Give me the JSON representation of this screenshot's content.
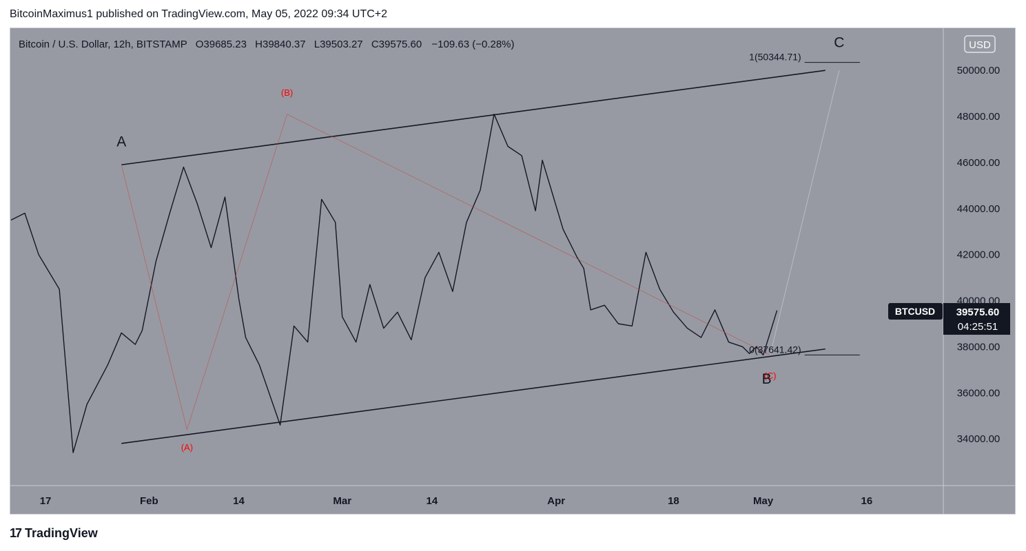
{
  "header": {
    "publisher_line": "BitcoinMaximus1 published on TradingView.com, May 05, 2022 09:34 UTC+2"
  },
  "legend": {
    "symbol": "Bitcoin / U.S. Dollar, 12h, BITSTAMP",
    "o_label": "O",
    "o_value": "39685.23",
    "h_label": "H",
    "h_value": "39840.37",
    "l_label": "L",
    "l_value": "39503.27",
    "c_label": "C",
    "c_value": "39575.60",
    "change": "−109.63 (−0.28%)"
  },
  "currency_button": "USD",
  "price_tag": {
    "symbol": "BTCUSD",
    "price": "39575.60",
    "countdown": "04:25:51"
  },
  "footer": {
    "logo_text": "TradingView"
  },
  "colors": {
    "background": "#979aa3",
    "candle": "#131722",
    "wave_red": "#c0504d",
    "annotation_red": "#ff0000",
    "text": "#131722"
  },
  "chart_data": {
    "type": "candlestick",
    "title": "Bitcoin / U.S. Dollar, 12h, BITSTAMP",
    "y_ticks": [
      "34000.00",
      "36000.00",
      "38000.00",
      "40000.00",
      "42000.00",
      "44000.00",
      "46000.00",
      "48000.00",
      "50000.00"
    ],
    "ylim": [
      32000,
      51800
    ],
    "x_ticks": [
      {
        "label": "17",
        "day": 0
      },
      {
        "label": "Feb",
        "day": 15
      },
      {
        "label": "14",
        "day": 28
      },
      {
        "label": "Mar",
        "day": 43
      },
      {
        "label": "14",
        "day": 56
      },
      {
        "label": "Apr",
        "day": 74
      },
      {
        "label": "18",
        "day": 91
      },
      {
        "label": "May",
        "day": 104
      },
      {
        "label": "16",
        "day": 119
      }
    ],
    "xlim_days": [
      -5,
      130
    ],
    "price_path_days": [
      -5,
      -3,
      -1,
      2,
      4,
      6,
      9,
      11,
      13,
      14,
      16,
      18,
      20,
      22,
      24,
      26,
      28,
      29,
      31,
      34,
      36,
      38,
      40,
      42,
      43,
      45,
      47,
      49,
      51,
      53,
      55,
      57,
      59,
      61,
      63,
      65,
      67,
      69,
      71,
      72,
      73,
      75,
      77,
      78,
      79,
      81,
      83,
      85,
      87,
      89,
      91,
      93,
      95,
      97,
      99,
      101,
      102,
      103,
      104,
      105,
      106
    ],
    "price_path_values": [
      43500,
      43800,
      42000,
      40500,
      33400,
      35500,
      37200,
      38600,
      38100,
      38700,
      41700,
      43800,
      45800,
      44200,
      42300,
      44500,
      40100,
      38400,
      37200,
      34600,
      38900,
      38200,
      44400,
      43400,
      39300,
      38200,
      40700,
      38800,
      39500,
      38300,
      41000,
      42100,
      40400,
      43400,
      44800,
      48100,
      46700,
      46300,
      43900,
      46100,
      45100,
      43100,
      41900,
      41400,
      39600,
      39800,
      39000,
      38900,
      42100,
      40500,
      39500,
      38800,
      38400,
      39600,
      38200,
      38000,
      37700,
      38000,
      37641,
      38600,
      39576
    ],
    "wave_labels": [
      {
        "text": "A",
        "day": 11,
        "price": 46700,
        "color": "black"
      },
      {
        "text": "(A)",
        "day": 20.5,
        "price": 33500,
        "color": "red"
      },
      {
        "text": "(B)",
        "day": 35,
        "price": 48900,
        "color": "red"
      },
      {
        "text": "(C)",
        "day": 105,
        "price": 36600,
        "color": "red"
      },
      {
        "text": "B",
        "day": 104.5,
        "price": 36400,
        "color": "black"
      },
      {
        "text": "C",
        "day": 115,
        "price": 51000,
        "color": "black"
      }
    ],
    "channel_upper": [
      {
        "day": 11,
        "price": 45900
      },
      {
        "day": 113,
        "price": 50000
      }
    ],
    "channel_lower": [
      {
        "day": 11,
        "price": 33800
      },
      {
        "day": 113,
        "price": 37900
      }
    ],
    "fib_levels": [
      {
        "label": "1(50344.71)",
        "price": 50344.71
      },
      {
        "label": "0(37641.42)",
        "price": 37641.42
      }
    ],
    "grid": false,
    "legend_position": "top-left"
  }
}
